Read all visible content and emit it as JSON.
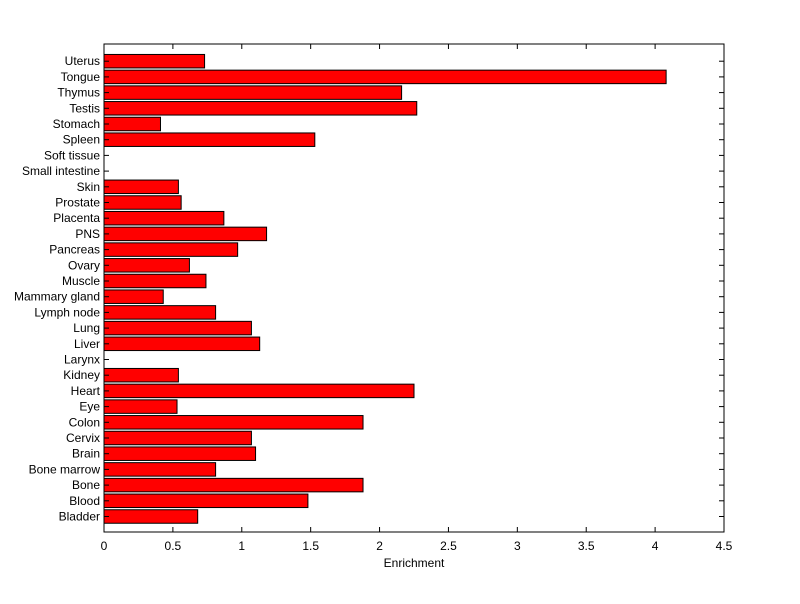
{
  "chart_data": {
    "type": "bar",
    "orientation": "horizontal",
    "title": "",
    "xlabel": "Enrichment",
    "ylabel": "",
    "xlim": [
      0,
      4.5
    ],
    "xticks": [
      "0",
      "0.5",
      "1",
      "1.5",
      "2",
      "2.5",
      "3",
      "3.5",
      "4",
      "4.5"
    ],
    "grid": false,
    "bar_color": "#ff0000",
    "categories": [
      "Bladder",
      "Blood",
      "Bone",
      "Bone marrow",
      "Brain",
      "Cervix",
      "Colon",
      "Eye",
      "Heart",
      "Kidney",
      "Larynx",
      "Liver",
      "Lung",
      "Lymph node",
      "Mammary gland",
      "Muscle",
      "Ovary",
      "Pancreas",
      "PNS",
      "Placenta",
      "Prostate",
      "Skin",
      "Small intestine",
      "Soft tissue",
      "Spleen",
      "Stomach",
      "Testis",
      "Thymus",
      "Tongue",
      "Uterus"
    ],
    "values": [
      0.68,
      1.48,
      1.88,
      0.81,
      1.1,
      1.07,
      1.88,
      0.53,
      2.25,
      0.54,
      0,
      1.13,
      1.07,
      0.81,
      0.43,
      0.74,
      0.62,
      0.97,
      1.18,
      0.87,
      0.56,
      0.54,
      0,
      0,
      1.53,
      0.41,
      2.27,
      2.16,
      4.08,
      0.73
    ]
  }
}
